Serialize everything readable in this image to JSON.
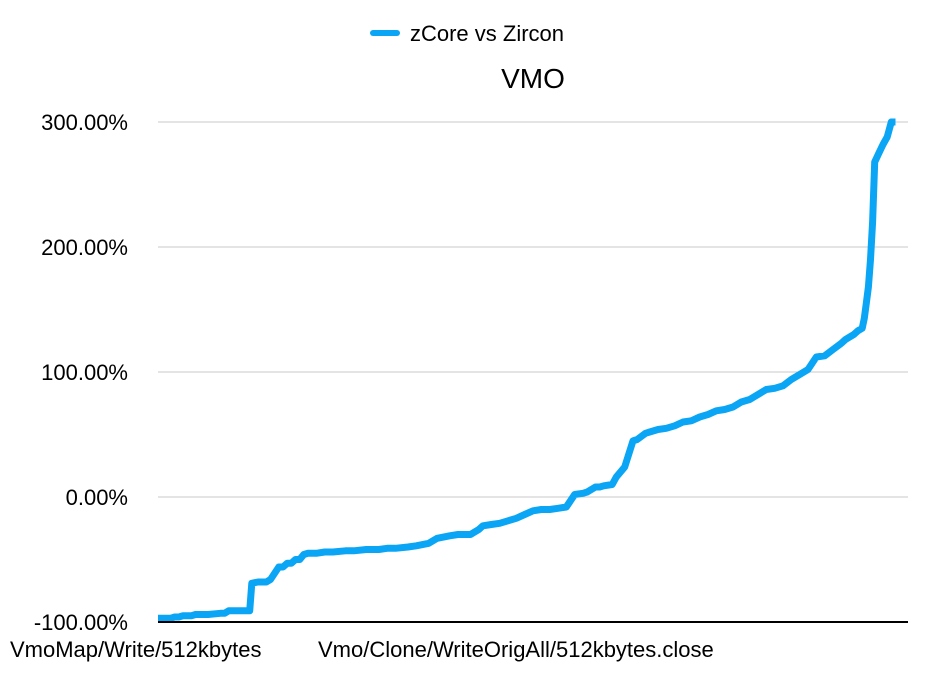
{
  "chart_data": {
    "type": "line",
    "title": "VMO",
    "legend_position": "top",
    "grid": true,
    "ylim": [
      -100,
      300
    ],
    "y_ticks": [
      -100,
      0,
      100,
      200,
      300
    ],
    "y_tick_labels": [
      "-100.00%",
      "0.00%",
      "100.00%",
      "200.00%",
      "300.00%"
    ],
    "x_tick_labels": [
      "VmoMap/Write/512kbytes",
      "Vmo/Clone/WriteOrigAll/512kbytes.close"
    ],
    "x_range": [
      0,
      180
    ],
    "series": [
      {
        "name": "zCore vs Zircon",
        "color": "#0aa5f5",
        "x": [
          0,
          3,
          4,
          5,
          6,
          8,
          9,
          11,
          12,
          15,
          16,
          17,
          20,
          21,
          22,
          22.5,
          24,
          26,
          27,
          29,
          30,
          31,
          32,
          33,
          34,
          35,
          36,
          38,
          40,
          42,
          45,
          47,
          50,
          53,
          55,
          57,
          60,
          62,
          65,
          67,
          70,
          72,
          75,
          77,
          78,
          80,
          82,
          84,
          86,
          88,
          90,
          92,
          94,
          96,
          98,
          100,
          102,
          103,
          105,
          106,
          107,
          109,
          110,
          112,
          114,
          115,
          117,
          118,
          120,
          122,
          124,
          126,
          128,
          130,
          132,
          134,
          136,
          138,
          140,
          142,
          144,
          146,
          148,
          150,
          152,
          154,
          156,
          158,
          160,
          162,
          164,
          165,
          167,
          168,
          169,
          169.5,
          170,
          170.5,
          171,
          171.5,
          172,
          173,
          174,
          175,
          176,
          177
        ],
        "values": [
          -97,
          -97,
          -96,
          -96,
          -95,
          -95,
          -94,
          -94,
          -94,
          -93,
          -93,
          -91,
          -91,
          -91,
          -91,
          -69,
          -68,
          -68,
          -66,
          -56,
          -56,
          -53,
          -53,
          -50,
          -50,
          -46,
          -45,
          -45,
          -44,
          -44,
          -43,
          -43,
          -42,
          -42,
          -41,
          -41,
          -40,
          -39,
          -37,
          -33,
          -31,
          -30,
          -30,
          -26,
          -23,
          -22,
          -21,
          -19,
          -17,
          -14,
          -11,
          -10,
          -10,
          -9,
          -8,
          2,
          3,
          4,
          8,
          8,
          9,
          10,
          16,
          24,
          45,
          46,
          51,
          52,
          54,
          55,
          57,
          60,
          61,
          64,
          66,
          69,
          70,
          72,
          76,
          78,
          82,
          86,
          87,
          89,
          94,
          98,
          102,
          112,
          113,
          118,
          123,
          126,
          130,
          133,
          135,
          143,
          155,
          168,
          190,
          220,
          268,
          275,
          282,
          288,
          300,
          300
        ]
      }
    ]
  }
}
